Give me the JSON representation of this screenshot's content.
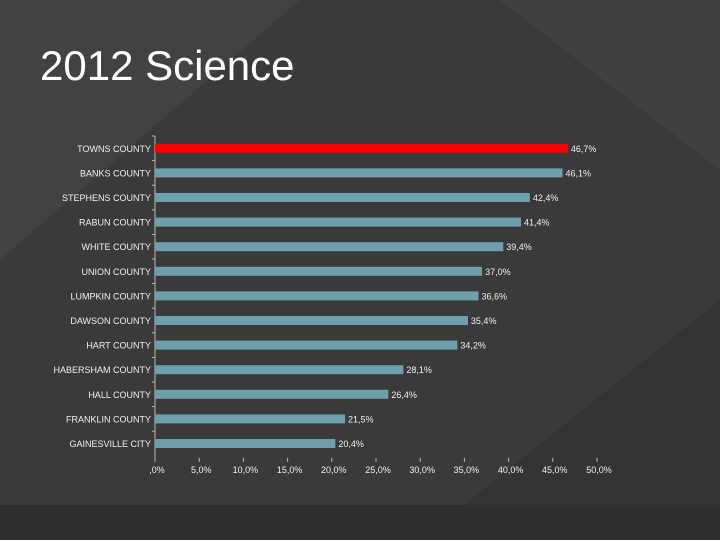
{
  "slide": {
    "title": "2012 Science"
  },
  "colors": {
    "background": "#3a3a3a",
    "bar": "#6f9fae",
    "highlight_bar": "#ff0000",
    "text": "#f0f0f0"
  },
  "chart_data": {
    "type": "bar",
    "orientation": "horizontal",
    "categories": [
      "TOWNS COUNTY",
      "BANKS COUNTY",
      "STEPHENS COUNTY",
      "RABUN COUNTY",
      "WHITE COUNTY",
      "UNION COUNTY",
      "LUMPKIN COUNTY",
      "DAWSON COUNTY",
      "HART COUNTY",
      "HABERSHAM COUNTY",
      "HALL COUNTY",
      "FRANKLIN COUNTY",
      "GAINESVILLE CITY"
    ],
    "values": [
      46.7,
      46.1,
      42.4,
      41.4,
      39.4,
      37.0,
      36.6,
      35.4,
      34.2,
      28.1,
      26.4,
      21.5,
      20.4
    ],
    "value_labels": [
      "46,7%",
      "46,1%",
      "42,4%",
      "41,4%",
      "39,4%",
      "37,0%",
      "36,6%",
      "35,4%",
      "34,2%",
      "28,1%",
      "26,4%",
      "21,5%",
      "20,4%"
    ],
    "highlight_index": 0,
    "xlim": [
      0,
      50
    ],
    "xticks": [
      0,
      5,
      10,
      15,
      20,
      25,
      30,
      35,
      40,
      45,
      50
    ],
    "xtick_labels": [
      ",0%",
      "5,0%",
      "10,0%",
      "15,0%",
      "20,0%",
      "25,0%",
      "30,0%",
      "35,0%",
      "40,0%",
      "45,0%",
      "50,0%"
    ],
    "grid": false,
    "legend": "none"
  }
}
